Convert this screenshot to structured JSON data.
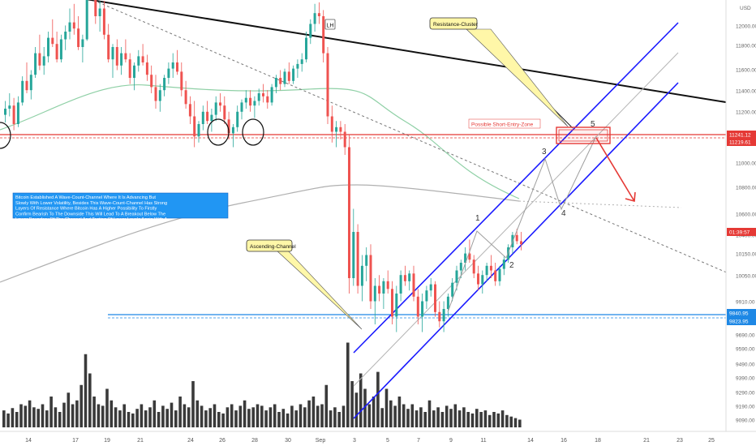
{
  "chart_data": {
    "type": "candlestick",
    "symbol_pair_currency": "USD",
    "y_axis": {
      "ticks": [
        12000,
        11800,
        11600,
        11400,
        11200,
        11000,
        10800,
        10600,
        10400,
        10150,
        10050,
        9910,
        9690,
        9590,
        9490,
        9390,
        9290,
        9190,
        9090
      ],
      "tick_labels": [
        "12000.00",
        "11800.00",
        "11600.00",
        "11400.00",
        "11200.00",
        "11000.00",
        "10800.00",
        "10600.00",
        "10400.00",
        "10150.00",
        "10050.00",
        "9910.00",
        "9690.00",
        "9590.00",
        "9490.00",
        "9390.00",
        "9290.00",
        "9190.00",
        "9090.00"
      ]
    },
    "x_axis": {
      "tick_labels": [
        "14",
        "17",
        "19",
        "21",
        "24",
        "26",
        "28",
        "30",
        "Sep",
        "3",
        "5",
        "7",
        "9",
        "11",
        "14",
        "16",
        "18",
        "21",
        "23",
        "25"
      ]
    },
    "price_markers": [
      {
        "label": "11241.12",
        "kind": "resistance",
        "color": "#e53935"
      },
      {
        "label": "11219.61",
        "kind": "resistance",
        "color": "#e53935"
      },
      {
        "label": "01:39:57",
        "kind": "last",
        "color": "#e53935"
      },
      {
        "label": "9840.95",
        "kind": "support",
        "color": "#1e88e5"
      },
      {
        "label": "9823.95",
        "kind": "support",
        "color": "#1e88e5"
      }
    ],
    "annotations": {
      "lower_high": "LH",
      "resistance_cluster": "Resistance-Cluster",
      "short_entry_zone": "Possible Short-Entry-Zone",
      "ascending_channel": "Ascending-Channel",
      "description": "Bitcoin Established A Wave-Count-Channel Where It Is Advancing But Slowly With Lower Volatility, Besides This Wave-Count-Channel Has Strong Layers Of Resistance Where Bitcoin Has A Higher Possibility To Firstly Confirm Bearish To The Downside This Will Lead To A Breakout Below The Lower Boundary Of The Channel And Testing Of Lower Levels Again With A Given Likelihood"
    },
    "wave_labels": [
      "1",
      "2",
      "3",
      "4",
      "5"
    ],
    "candles": [
      [
        11360,
        11450,
        11310,
        11400
      ],
      [
        11400,
        11500,
        11350,
        11420
      ],
      [
        11420,
        11470,
        11260,
        11300
      ],
      [
        11300,
        11480,
        11280,
        11440
      ],
      [
        11440,
        11610,
        11420,
        11580
      ],
      [
        11580,
        11700,
        11500,
        11520
      ],
      [
        11520,
        11650,
        11460,
        11620
      ],
      [
        11620,
        11800,
        11600,
        11760
      ],
      [
        11760,
        11880,
        11650,
        11680
      ],
      [
        11680,
        11800,
        11620,
        11740
      ],
      [
        11740,
        11900,
        11700,
        11860
      ],
      [
        11860,
        11980,
        11800,
        11820
      ],
      [
        11820,
        11900,
        11700,
        11720
      ],
      [
        11720,
        11880,
        11700,
        11850
      ],
      [
        11850,
        11940,
        11780,
        11900
      ],
      [
        11900,
        12050,
        11850,
        11960
      ],
      [
        11960,
        12080,
        11880,
        11920
      ],
      [
        11920,
        12000,
        11780,
        11800
      ],
      [
        11800,
        11880,
        11700,
        11850
      ],
      [
        11850,
        12400,
        11840,
        12380
      ],
      [
        12380,
        12470,
        12200,
        12250
      ],
      [
        12250,
        12300,
        11950,
        12000
      ],
      [
        12000,
        12100,
        11900,
        12050
      ],
      [
        12050,
        12100,
        11850,
        11880
      ],
      [
        11880,
        11950,
        11700,
        11720
      ],
      [
        11720,
        11820,
        11600,
        11800
      ],
      [
        11800,
        11850,
        11650,
        11680
      ],
      [
        11680,
        11800,
        11620,
        11760
      ],
      [
        11760,
        11850,
        11700,
        11720
      ],
      [
        11720,
        11760,
        11560,
        11600
      ],
      [
        11600,
        11700,
        11520,
        11680
      ],
      [
        11680,
        11780,
        11640,
        11740
      ],
      [
        11740,
        11820,
        11680,
        11700
      ],
      [
        11700,
        11750,
        11580,
        11620
      ],
      [
        11620,
        11680,
        11500,
        11540
      ],
      [
        11540,
        11620,
        11400,
        11450
      ],
      [
        11450,
        11560,
        11380,
        11520
      ],
      [
        11520,
        11620,
        11480,
        11600
      ],
      [
        11600,
        11700,
        11560,
        11660
      ],
      [
        11660,
        11760,
        11600,
        11700
      ],
      [
        11700,
        11780,
        11620,
        11640
      ],
      [
        11640,
        11700,
        11480,
        11520
      ],
      [
        11520,
        11580,
        11400,
        11430
      ],
      [
        11430,
        11480,
        11300,
        11350
      ],
      [
        11350,
        11450,
        11150,
        11220
      ],
      [
        11220,
        11320,
        11180,
        11300
      ],
      [
        11300,
        11420,
        11260,
        11380
      ],
      [
        11380,
        11450,
        11300,
        11320
      ],
      [
        11320,
        11400,
        11250,
        11360
      ],
      [
        11360,
        11480,
        11320,
        11440
      ],
      [
        11440,
        11500,
        11380,
        11420
      ],
      [
        11420,
        11480,
        11300,
        11330
      ],
      [
        11330,
        11380,
        11200,
        11240
      ],
      [
        11240,
        11300,
        11150,
        11280
      ],
      [
        11280,
        11420,
        11250,
        11380
      ],
      [
        11380,
        11460,
        11330,
        11440
      ],
      [
        11440,
        11520,
        11400,
        11470
      ],
      [
        11470,
        11520,
        11380,
        11420
      ],
      [
        11420,
        11480,
        11340,
        11450
      ],
      [
        11450,
        11530,
        11420,
        11500
      ],
      [
        11500,
        11560,
        11440,
        11480
      ],
      [
        11480,
        11520,
        11400,
        11440
      ],
      [
        11440,
        11560,
        11420,
        11540
      ],
      [
        11540,
        11620,
        11500,
        11600
      ],
      [
        11600,
        11650,
        11520,
        11560
      ],
      [
        11560,
        11660,
        11540,
        11640
      ],
      [
        11640,
        11700,
        11560,
        11580
      ],
      [
        11580,
        11680,
        11560,
        11660
      ],
      [
        11660,
        11720,
        11600,
        11690
      ],
      [
        11690,
        11760,
        11640,
        11720
      ],
      [
        11720,
        11900,
        11700,
        11860
      ],
      [
        11860,
        11980,
        11820,
        11950
      ],
      [
        11950,
        12080,
        11900,
        12020
      ],
      [
        12020,
        12090,
        11950,
        12000
      ],
      [
        12000,
        12040,
        11700,
        11760
      ],
      [
        11760,
        11800,
        11300,
        11350
      ],
      [
        11350,
        11420,
        11180,
        11250
      ],
      [
        11250,
        11320,
        11150,
        11280
      ],
      [
        11280,
        11320,
        11200,
        11250
      ],
      [
        11250,
        11300,
        11100,
        11150
      ],
      [
        11150,
        11230,
        10200,
        10300
      ],
      [
        10300,
        10750,
        10250,
        10600
      ],
      [
        10600,
        10650,
        10200,
        10250
      ],
      [
        10250,
        10450,
        10150,
        10380
      ],
      [
        10380,
        10500,
        10280,
        10450
      ],
      [
        10450,
        10520,
        10100,
        10150
      ],
      [
        10150,
        10300,
        10000,
        10250
      ],
      [
        10250,
        10320,
        10150,
        10200
      ],
      [
        10200,
        10300,
        10100,
        10280
      ],
      [
        10280,
        10350,
        10200,
        10230
      ],
      [
        10230,
        10280,
        10000,
        10050
      ],
      [
        10050,
        10250,
        9950,
        10200
      ],
      [
        10200,
        10350,
        10150,
        10320
      ],
      [
        10320,
        10380,
        10250,
        10280
      ],
      [
        10280,
        10350,
        10220,
        10330
      ],
      [
        10330,
        10380,
        10150,
        10180
      ],
      [
        10180,
        10230,
        10000,
        10050
      ],
      [
        10050,
        10200,
        9950,
        10150
      ],
      [
        10150,
        10250,
        10100,
        10220
      ],
      [
        10220,
        10300,
        10180,
        10260
      ],
      [
        10260,
        10280,
        10050,
        10080
      ],
      [
        10080,
        10150,
        9980,
        10020
      ],
      [
        10020,
        10150,
        9950,
        10100
      ],
      [
        10100,
        10200,
        10050,
        10180
      ],
      [
        10180,
        10300,
        10150,
        10270
      ],
      [
        10270,
        10380,
        10220,
        10350
      ],
      [
        10350,
        10420,
        10300,
        10400
      ],
      [
        10400,
        10500,
        10350,
        10460
      ],
      [
        10460,
        10550,
        10400,
        10420
      ],
      [
        10420,
        10450,
        10300,
        10330
      ],
      [
        10330,
        10380,
        10220,
        10260
      ],
      [
        10260,
        10350,
        10200,
        10320
      ],
      [
        10320,
        10400,
        10280,
        10380
      ],
      [
        10380,
        10450,
        10300,
        10350
      ],
      [
        10350,
        10400,
        10250,
        10280
      ],
      [
        10280,
        10380,
        10250,
        10360
      ],
      [
        10360,
        10440,
        10320,
        10420
      ],
      [
        10420,
        10520,
        10400,
        10500
      ],
      [
        10500,
        10600,
        10460,
        10580
      ],
      [
        10580,
        10620,
        10520,
        10540
      ],
      [
        10540,
        10600,
        10480,
        10520
      ]
    ],
    "volume": [
      22,
      18,
      25,
      20,
      30,
      28,
      35,
      26,
      24,
      30,
      22,
      40,
      26,
      20,
      32,
      45,
      30,
      35,
      55,
      95,
      70,
      40,
      30,
      28,
      50,
      35,
      26,
      22,
      30,
      20,
      18,
      24,
      30,
      22,
      26,
      35,
      20,
      28,
      24,
      32,
      22,
      40,
      30,
      26,
      60,
      35,
      28,
      22,
      25,
      30,
      20,
      18,
      26,
      30,
      22,
      28,
      35,
      24,
      26,
      30,
      28,
      22,
      26,
      30,
      20,
      24,
      18,
      28,
      22,
      30,
      26,
      35,
      40,
      28,
      30,
      55,
      22,
      26,
      20,
      28,
      110,
      60,
      45,
      70,
      50,
      30,
      40,
      72,
      25,
      50,
      35,
      28,
      40,
      30,
      24,
      30,
      22,
      26,
      20,
      35,
      22,
      26,
      20,
      28,
      24,
      30,
      22,
      26,
      20,
      18,
      24,
      20,
      22,
      16,
      20,
      18,
      22,
      16,
      14,
      12,
      10
    ],
    "moving_averages": [
      "fast MA (green)",
      "slow MA (grey)"
    ]
  }
}
